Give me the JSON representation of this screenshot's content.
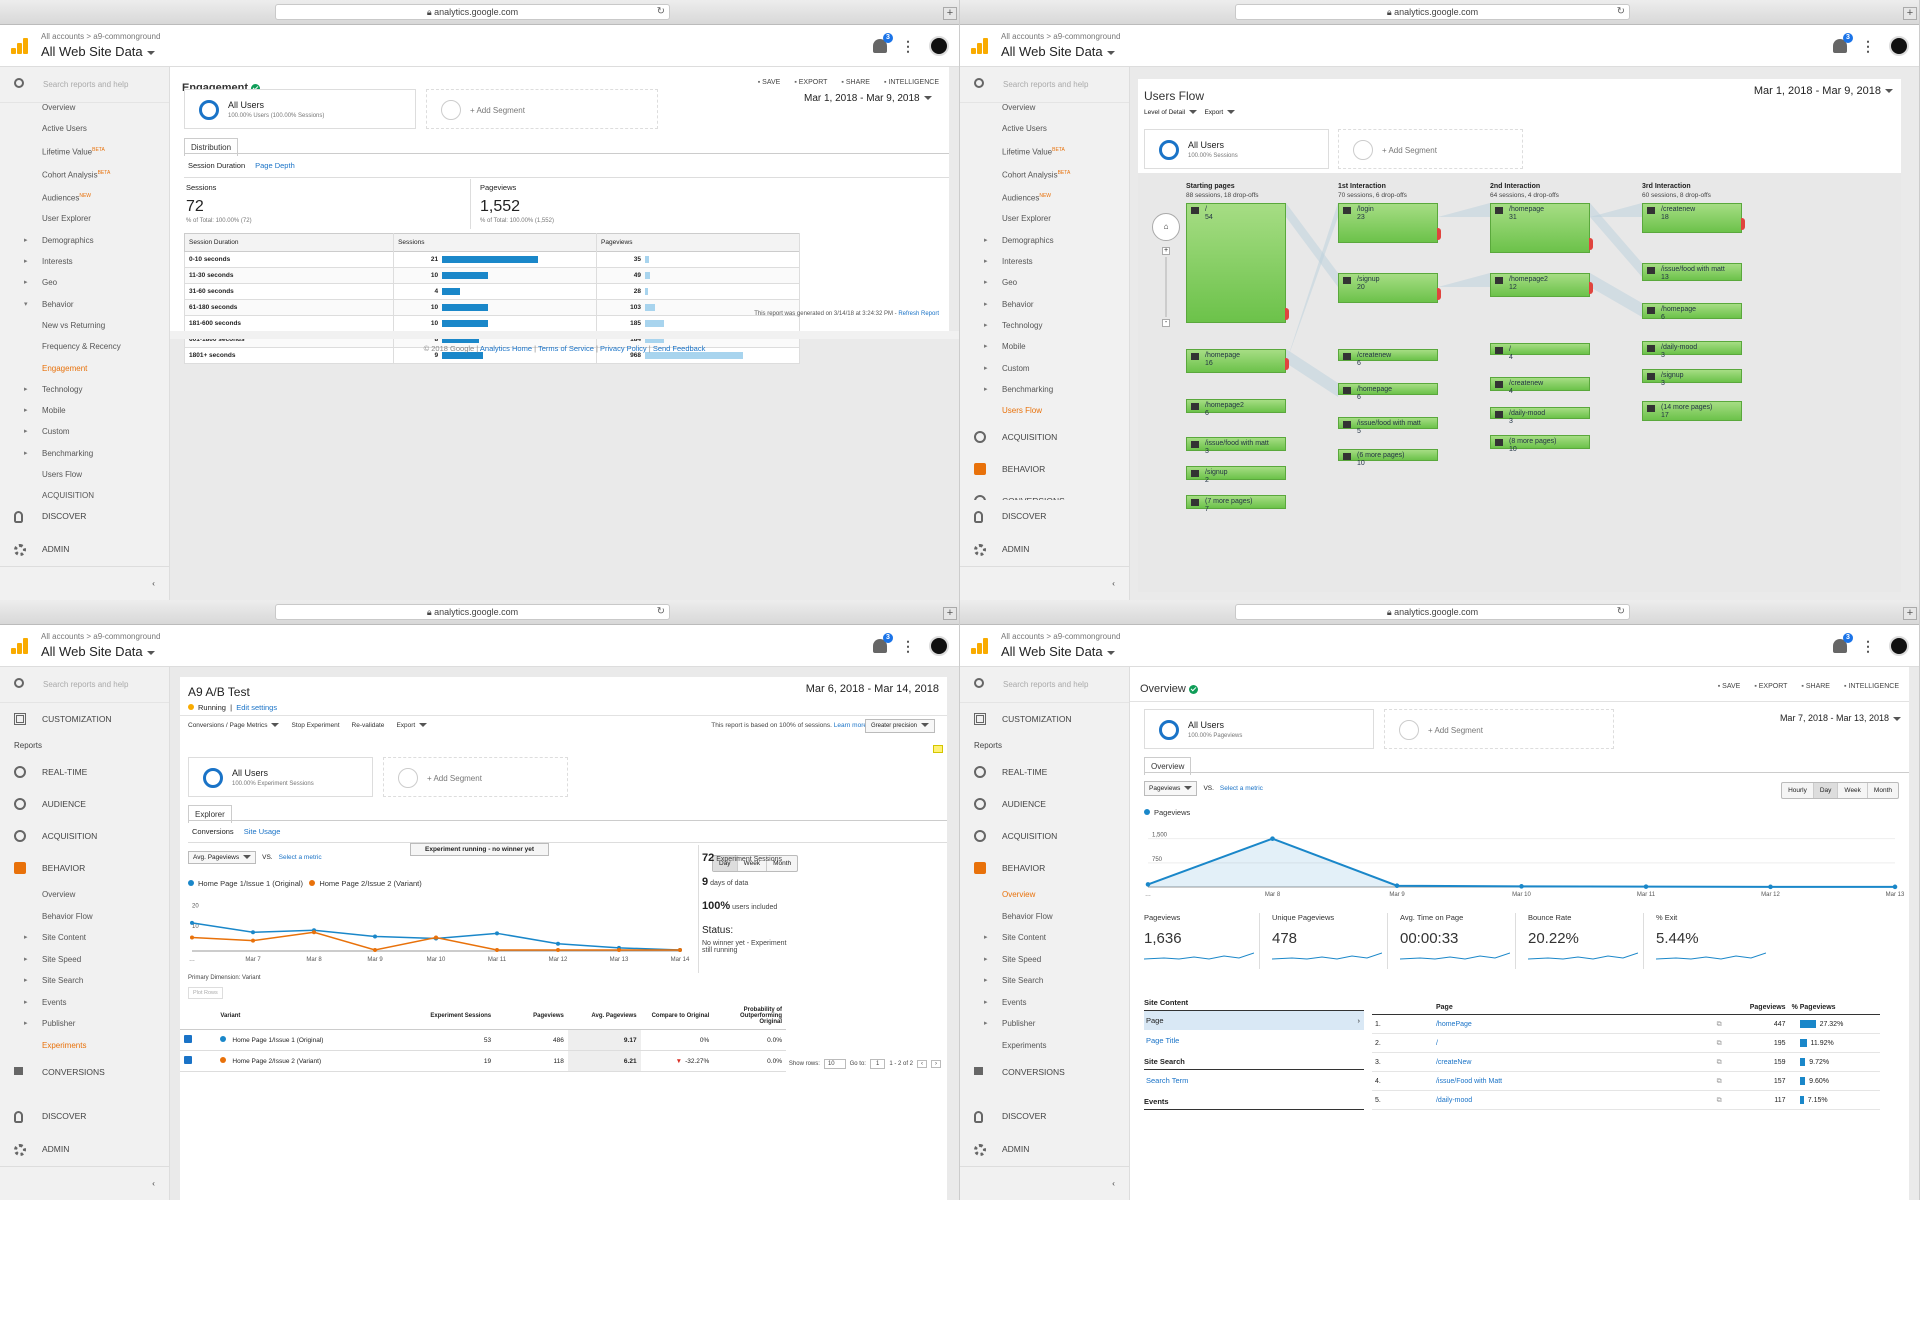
{
  "browser": {
    "url": "analytics.google.com"
  },
  "header": {
    "accounts": "All accounts",
    "breadcrumb_sep": ">",
    "account_name": "a9-commonground",
    "property": "All Web Site Data",
    "notif_count": "3"
  },
  "search_placeholder": "Search reports and help",
  "footer": {
    "discover": "DISCOVER",
    "admin": "ADMIN",
    "collapse": "‹"
  },
  "q1": {
    "nav": [
      {
        "l": "Overview"
      },
      {
        "l": "Active Users"
      },
      {
        "l": "Lifetime Value",
        "badge": "BETA"
      },
      {
        "l": "Cohort Analysis",
        "badge": "BETA"
      },
      {
        "l": "Audiences",
        "badge": "NEW"
      },
      {
        "l": "User Explorer"
      },
      {
        "l": "Demographics",
        "tri": true
      },
      {
        "l": "Interests",
        "tri": true
      },
      {
        "l": "Geo",
        "tri": true
      },
      {
        "l": "Behavior",
        "open": true
      },
      {
        "l": "New vs Returning",
        "sub": true
      },
      {
        "l": "Frequency & Recency",
        "sub": true
      },
      {
        "l": "Engagement",
        "sub": true,
        "active": true
      },
      {
        "l": "Technology",
        "tri": true
      },
      {
        "l": "Mobile",
        "tri": true
      },
      {
        "l": "Custom",
        "tri": true
      },
      {
        "l": "Benchmarking",
        "tri": true
      },
      {
        "l": "Users Flow"
      },
      {
        "l": "ACQUISITION"
      }
    ],
    "title": "Engagement",
    "tools": [
      "SAVE",
      "EXPORT",
      "SHARE",
      "INTELLIGENCE"
    ],
    "segment": {
      "name": "All Users",
      "desc": "100.00% Users (100.00% Sessions)"
    },
    "add_segment": "+ Add Segment",
    "date": "Mar 1, 2018 - Mar 9, 2018",
    "tab": "Distribution",
    "subtabs": [
      "Session Duration",
      "Page Depth"
    ],
    "summary": [
      {
        "label": "Sessions",
        "value": "72",
        "total": "% of Total: 100.00% (72)"
      },
      {
        "label": "Pageviews",
        "value": "1,552",
        "total": "% of Total: 100.00% (1,552)"
      }
    ],
    "table": {
      "headers": [
        "Session Duration",
        "Sessions",
        "Pageviews"
      ],
      "rows": [
        [
          "0-10 seconds",
          21,
          35
        ],
        [
          "11-30 seconds",
          10,
          49
        ],
        [
          "31-60 seconds",
          4,
          28
        ],
        [
          "61-180 seconds",
          10,
          103
        ],
        [
          "181-600 seconds",
          10,
          185
        ],
        [
          "601-1800 seconds",
          8,
          184
        ],
        [
          "1801+ seconds",
          9,
          968
        ]
      ]
    },
    "generated": "This report was generated on 3/14/18 at 3:24:32 PM -",
    "refresh": "Refresh Report",
    "copyright": "© 2018 Google |",
    "links": [
      "Analytics Home",
      "Terms of Service",
      "Privacy Policy",
      "Send Feedback"
    ]
  },
  "q2": {
    "nav": [
      {
        "l": "Overview"
      },
      {
        "l": "Active Users"
      },
      {
        "l": "Lifetime Value",
        "badge": "BETA"
      },
      {
        "l": "Cohort Analysis",
        "badge": "BETA"
      },
      {
        "l": "Audiences",
        "badge": "NEW"
      },
      {
        "l": "User Explorer"
      },
      {
        "l": "Demographics",
        "tri": true
      },
      {
        "l": "Interests",
        "tri": true
      },
      {
        "l": "Geo",
        "tri": true
      },
      {
        "l": "Behavior",
        "tri": true
      },
      {
        "l": "Technology",
        "tri": true
      },
      {
        "l": "Mobile",
        "tri": true
      },
      {
        "l": "Custom",
        "tri": true
      },
      {
        "l": "Benchmarking",
        "tri": true
      },
      {
        "l": "Users Flow",
        "active": true
      }
    ],
    "big": [
      "ACQUISITION",
      "BEHAVIOR",
      "CONVERSIONS"
    ],
    "title": "Users Flow",
    "date": "Mar 1, 2018 - Mar 9, 2018",
    "controls": [
      "Level of Detail",
      "Export"
    ],
    "segment": {
      "name": "All Users",
      "desc": "100.00% Sessions"
    },
    "add_segment": "+ Add Segment",
    "columns": [
      {
        "h": "Starting pages",
        "s": "88 sessions, 18 drop-offs"
      },
      {
        "h": "1st Interaction",
        "s": "70 sessions, 6 drop-offs"
      },
      {
        "h": "2nd Interaction",
        "s": "64 sessions, 4 drop-offs"
      },
      {
        "h": "3rd Interaction",
        "s": "60 sessions, 8 drop-offs"
      }
    ],
    "nodes": [
      [
        {
          "p": "/",
          "n": "54"
        },
        {
          "p": "/homepage",
          "n": "16"
        },
        {
          "p": "/homepage2",
          "n": "6"
        },
        {
          "p": "/issue/food with matt",
          "n": "3"
        },
        {
          "p": "/signup",
          "n": "2"
        },
        {
          "p": "(7 more pages)",
          "n": "7"
        }
      ],
      [
        {
          "p": "/login",
          "n": "23"
        },
        {
          "p": "/signup",
          "n": "20"
        },
        {
          "p": "/createnew",
          "n": "6"
        },
        {
          "p": "/homepage",
          "n": "6"
        },
        {
          "p": "/issue/food with matt",
          "n": "5"
        },
        {
          "p": "(6 more pages)",
          "n": "10"
        }
      ],
      [
        {
          "p": "/homepage",
          "n": "31"
        },
        {
          "p": "/homepage2",
          "n": "12"
        },
        {
          "p": "/",
          "n": "4"
        },
        {
          "p": "/createnew",
          "n": "4"
        },
        {
          "p": "/daily-mood",
          "n": "3"
        },
        {
          "p": "(8 more pages)",
          "n": "10"
        }
      ],
      [
        {
          "p": "/createnew",
          "n": "18"
        },
        {
          "p": "/issue/food with matt",
          "n": "13"
        },
        {
          "p": "/homepage",
          "n": "6"
        },
        {
          "p": "/daily-mood",
          "n": "3"
        },
        {
          "p": "/signup",
          "n": "3"
        },
        {
          "p": "(14 more pages)",
          "n": "17"
        }
      ]
    ]
  },
  "q3": {
    "nav_top": [
      "CUSTOMIZATION"
    ],
    "reports": "Reports",
    "big": [
      "REAL-TIME",
      "AUDIENCE",
      "ACQUISITION",
      "BEHAVIOR"
    ],
    "nav": [
      {
        "l": "Overview"
      },
      {
        "l": "Behavior Flow"
      },
      {
        "l": "Site Content",
        "tri": true
      },
      {
        "l": "Site Speed",
        "tri": true
      },
      {
        "l": "Site Search",
        "tri": true
      },
      {
        "l": "Events",
        "tri": true
      },
      {
        "l": "Publisher",
        "tri": true
      },
      {
        "l": "Experiments",
        "active": true
      }
    ],
    "conversions": "CONVERSIONS",
    "title": "A9 A/B Test",
    "date": "Mar 6, 2018 - Mar 14, 2018",
    "status": "Running",
    "edit": "Edit settings",
    "toolbar": [
      "Conversions / Page Metrics",
      "Stop Experiment",
      "Re-validate",
      "Export"
    ],
    "based": "This report is based on 100% of sessions.",
    "learn": "Learn more",
    "precision": "Greater precision",
    "segment": {
      "name": "All Users",
      "desc": "100.00% Experiment Sessions"
    },
    "add_segment": "+ Add Segment",
    "tab": "Explorer",
    "subtabs": [
      "Conversions",
      "Site Usage"
    ],
    "metric_select": "Avg. Pageviews",
    "vs": "VS.",
    "select_metric": "Select a metric",
    "banner": "Experiment running - no winner yet",
    "range": [
      "Day",
      "Week",
      "Month"
    ],
    "stats": [
      {
        "v": "72",
        "l": "Experiment Sessions"
      },
      {
        "v": "9",
        "l": "days of data"
      },
      {
        "v": "100%",
        "l": "users included"
      }
    ],
    "status_h": "Status:",
    "status_t": "No winner yet - Experiment still running",
    "primary": "Primary Dimension:",
    "primary_v": "Variant",
    "plot_rows": "Plot Rows",
    "table": {
      "headers": [
        "Variant",
        "Experiment Sessions",
        "Pageviews",
        "Avg. Pageviews",
        "Compare to Original",
        "Probability of Outperforming Original"
      ],
      "rows": [
        [
          "Home Page 1/Issue 1 (Original)",
          "53",
          "486",
          "9.17",
          "0%",
          "0.0%"
        ],
        [
          "Home Page 2/Issue 2 (Variant)",
          "19",
          "118",
          "6.21",
          "-32.27%",
          "0.0%"
        ]
      ]
    },
    "show_rows": "Show rows:",
    "rows_n": "10",
    "goto": "Go to:",
    "goto_n": "1",
    "of": "1 - 2 of 2",
    "chart_data": {
      "type": "line",
      "x": [
        "…",
        "Mar 7",
        "Mar 8",
        "Mar 9",
        "Mar 10",
        "Mar 11",
        "Mar 12",
        "Mar 13",
        "Mar 14"
      ],
      "ylim": [
        0,
        25
      ],
      "yticks": [
        "20",
        "10"
      ],
      "series": [
        {
          "name": "Home Page 1/Issue 1 (Original)",
          "color": "#1a87c9",
          "values": [
            13.5,
            9,
            10,
            7,
            6,
            8.5,
            3.5,
            1.5,
            0.5
          ]
        },
        {
          "name": "Home Page 2/Issue 2 (Variant)",
          "color": "#e8710a",
          "values": [
            6.5,
            5,
            9,
            0.5,
            6.5,
            0.5,
            0.5,
            0.5,
            0.5
          ]
        }
      ]
    }
  },
  "q4": {
    "nav_top": [
      "CUSTOMIZATION"
    ],
    "reports": "Reports",
    "big": [
      "REAL-TIME",
      "AUDIENCE",
      "ACQUISITION",
      "BEHAVIOR"
    ],
    "nav": [
      {
        "l": "Overview",
        "active": true
      },
      {
        "l": "Behavior Flow"
      },
      {
        "l": "Site Content",
        "tri": true
      },
      {
        "l": "Site Speed",
        "tri": true
      },
      {
        "l": "Site Search",
        "tri": true
      },
      {
        "l": "Events",
        "tri": true
      },
      {
        "l": "Publisher",
        "tri": true
      },
      {
        "l": "Experiments"
      }
    ],
    "conversions": "CONVERSIONS",
    "title": "Overview",
    "tools": [
      "SAVE",
      "EXPORT",
      "SHARE",
      "INTELLIGENCE"
    ],
    "segment": {
      "name": "All Users",
      "desc": "100.00% Pageviews"
    },
    "add_segment": "+ Add Segment",
    "date": "Mar 7, 2018 - Mar 13, 2018",
    "tab": "Overview",
    "metric_select": "Pageviews",
    "vs": "VS.",
    "select_metric": "Select a metric",
    "range": [
      "Hourly",
      "Day",
      "Week",
      "Month"
    ],
    "legend": "Pageviews",
    "chart_data": {
      "type": "area",
      "x": [
        "…",
        "Mar 8",
        "Mar 9",
        "Mar 10",
        "Mar 11",
        "Mar 12",
        "Mar 13"
      ],
      "yticks": [
        "1,500",
        "750"
      ],
      "ylim": [
        0,
        1800
      ],
      "series": [
        {
          "name": "Pageviews",
          "values": [
            80,
            1500,
            40,
            20,
            10,
            5,
            5
          ]
        }
      ],
      "xpos": [
        0,
        1,
        2,
        3,
        4,
        5,
        6
      ]
    },
    "metrics": [
      {
        "l": "Pageviews",
        "v": "1,636"
      },
      {
        "l": "Unique Pageviews",
        "v": "478"
      },
      {
        "l": "Avg. Time on Page",
        "v": "00:00:33"
      },
      {
        "l": "Bounce Rate",
        "v": "20.22%"
      },
      {
        "l": "% Exit",
        "v": "5.44%"
      }
    ],
    "site_content": "Site Content",
    "page": "Page",
    "page_title": "Page Title",
    "site_search": "Site Search",
    "search_term": "Search Term",
    "events": "Events",
    "table": {
      "headers": [
        "Page",
        "Pageviews",
        "% Pageviews"
      ],
      "rows": [
        [
          "1.",
          "/homePage",
          "447",
          "27.32%",
          27.32
        ],
        [
          "2.",
          "/",
          "195",
          "11.92%",
          11.92
        ],
        [
          "3.",
          "/createNew",
          "159",
          "9.72%",
          9.72
        ],
        [
          "4.",
          "/issue/Food with Matt",
          "157",
          "9.60%",
          9.6
        ],
        [
          "5.",
          "/daily-mood",
          "117",
          "7.15%",
          7.15
        ]
      ]
    }
  }
}
